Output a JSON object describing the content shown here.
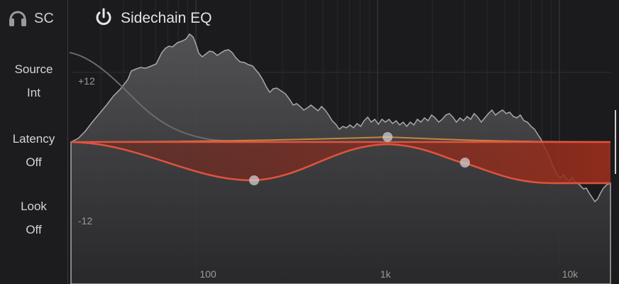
{
  "header": {
    "sc_label": "SC",
    "title": "Sidechain EQ",
    "icons": {
      "headphones": "headphones-icon",
      "power": "power-icon"
    }
  },
  "sidebar": {
    "source": {
      "label": "Source",
      "value": "Int"
    },
    "latency": {
      "label": "Latency",
      "value": "Off"
    },
    "look": {
      "label": "Look",
      "value": "Off"
    }
  },
  "graph": {
    "gain_labels": {
      "plus": "+12",
      "minus": "-12"
    },
    "freq_labels": [
      "100",
      "1k",
      "10k"
    ],
    "colors": {
      "background": "#1b1b1d",
      "spectrum_fill": "#4a4a4c",
      "spectrum_line": "#a8a8a8",
      "eq_curve": "#e0533f",
      "eq_fill": "#8a2a1e",
      "secondary_curve": "#c8843a",
      "node": "#cfcfcf"
    },
    "nodes": [
      {
        "name": "eq-node-1",
        "freq_hz": 200,
        "gain_db": -6
      },
      {
        "name": "eq-node-2",
        "freq_hz": 1000,
        "gain_db": 0.5
      },
      {
        "name": "eq-node-3",
        "freq_hz": 2800,
        "gain_db": -3
      }
    ]
  }
}
